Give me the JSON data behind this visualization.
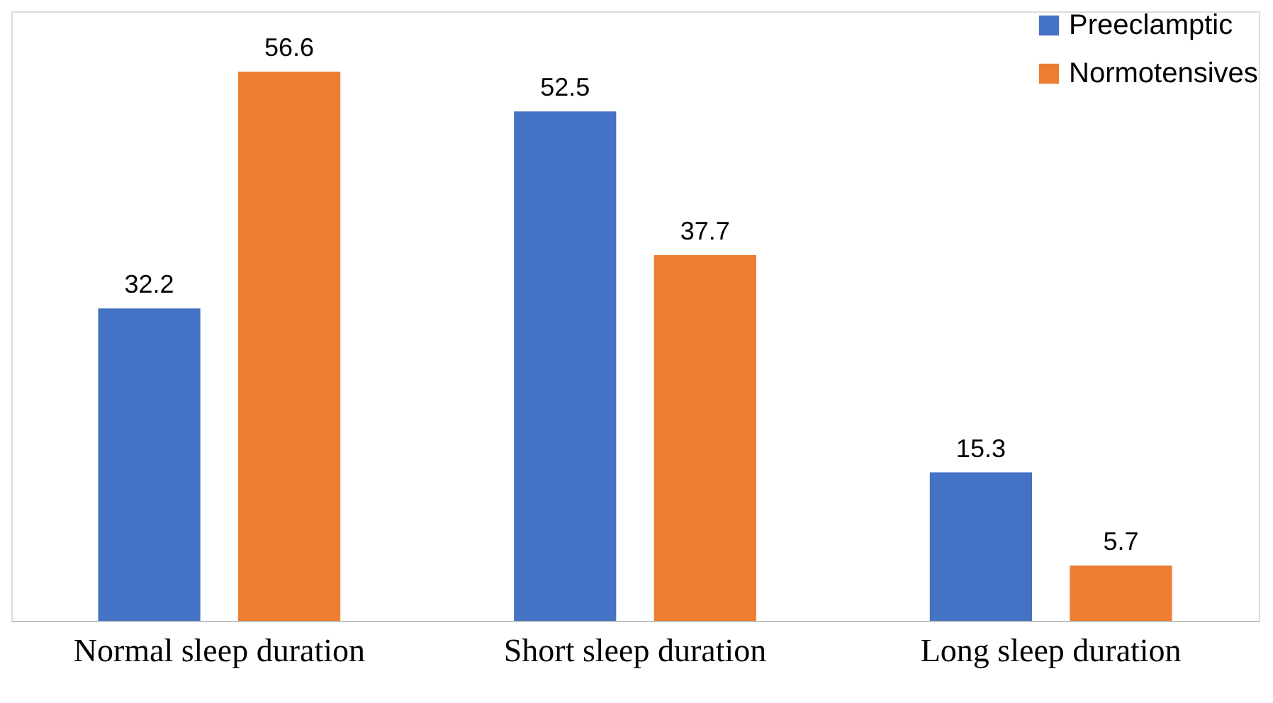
{
  "chart_data": {
    "type": "bar",
    "categories": [
      "Normal sleep duration",
      "Short sleep duration",
      "Long sleep duration"
    ],
    "series": [
      {
        "name": "Preeclamptic",
        "color": "#4472c4",
        "values": [
          32.2,
          52.5,
          15.3
        ]
      },
      {
        "name": "Normotensives",
        "color": "#ed7d31",
        "values": [
          56.6,
          37.7,
          5.7
        ]
      }
    ],
    "data_labels": true,
    "legend": "top right",
    "grid": false
  }
}
